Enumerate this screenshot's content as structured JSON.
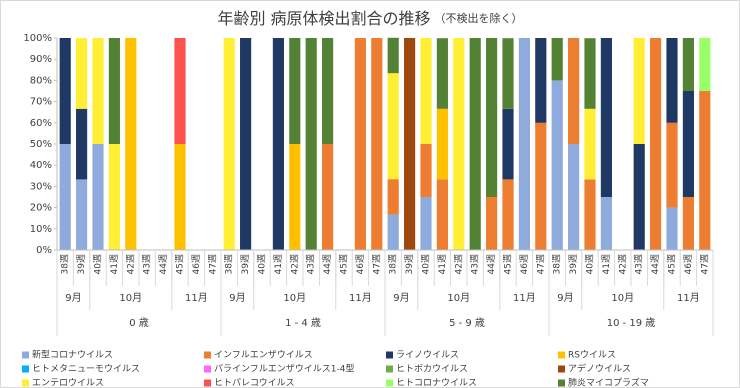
{
  "chart_data": {
    "type": "stacked_bar",
    "title": "年齢別 病原体検出割合の推移",
    "subtitle": "（不検出を除く）",
    "ylim": [
      0,
      100
    ],
    "yticks": [
      {
        "value": 0,
        "label": "0%"
      },
      {
        "value": 10,
        "label": "10%"
      },
      {
        "value": 20,
        "label": "20%"
      },
      {
        "value": 30,
        "label": "30%"
      },
      {
        "value": 40,
        "label": "40%"
      },
      {
        "value": 50,
        "label": "50%"
      },
      {
        "value": 60,
        "label": "60%"
      },
      {
        "value": 70,
        "label": "70%"
      },
      {
        "value": 80,
        "label": "80%"
      },
      {
        "value": 90,
        "label": "90%"
      },
      {
        "value": 100,
        "label": "100%"
      }
    ],
    "grid": false,
    "legend": "bottom",
    "groups": [
      {
        "label": "0 歳",
        "months": [
          {
            "label": "9月",
            "weeks": [
              "38週",
              "39週"
            ]
          },
          {
            "label": "10月",
            "weeks": [
              "40週",
              "41週",
              "42週",
              "43週",
              "44週"
            ]
          },
          {
            "label": "11月",
            "weeks": [
              "45週",
              "46週",
              "47週"
            ]
          }
        ]
      },
      {
        "label": "1 - 4 歳",
        "months": [
          {
            "label": "9月",
            "weeks": [
              "38週",
              "39週"
            ]
          },
          {
            "label": "10月",
            "weeks": [
              "40週",
              "41週",
              "42週",
              "43週",
              "44週"
            ]
          },
          {
            "label": "11月",
            "weeks": [
              "45週",
              "46週",
              "47週"
            ]
          }
        ]
      },
      {
        "label": "5 - 9 歳",
        "months": [
          {
            "label": "9月",
            "weeks": [
              "38週",
              "39週"
            ]
          },
          {
            "label": "10月",
            "weeks": [
              "40週",
              "41週",
              "42週",
              "43週",
              "44週"
            ]
          },
          {
            "label": "11月",
            "weeks": [
              "45週",
              "46週",
              "47週"
            ]
          }
        ]
      },
      {
        "label": "10 - 19 歳",
        "months": [
          {
            "label": "9月",
            "weeks": [
              "38週",
              "39週"
            ]
          },
          {
            "label": "10月",
            "weeks": [
              "40週",
              "41週",
              "42週",
              "43週",
              "44週"
            ]
          },
          {
            "label": "11月",
            "weeks": [
              "45週",
              "46週",
              "47週"
            ]
          }
        ]
      }
    ],
    "series": [
      {
        "name": "新型コロナウイルス",
        "color": "#8faadc",
        "values": [
          50,
          33.3,
          50,
          0,
          0,
          0,
          0,
          0,
          0,
          0,
          0,
          0,
          0,
          0,
          0,
          0,
          0,
          0,
          0,
          0,
          16.7,
          0,
          25,
          0,
          0,
          0,
          0,
          0,
          100,
          0,
          80,
          50,
          0,
          25,
          0,
          0,
          0,
          20,
          0,
          0
        ]
      },
      {
        "name": "インフルエンザウイルス",
        "color": "#ed7d31",
        "values": [
          0,
          0,
          0,
          0,
          0,
          0,
          0,
          0,
          0,
          0,
          0,
          0,
          0,
          0,
          0,
          0,
          50,
          0,
          100,
          100,
          16.7,
          0,
          25,
          33.3,
          0,
          0,
          25,
          33.3,
          0,
          60,
          0,
          50,
          33.3,
          0,
          0,
          0,
          100,
          40,
          25,
          75
        ]
      },
      {
        "name": "ライノウイルス",
        "color": "#203864",
        "values": [
          50,
          33.3,
          0,
          0,
          0,
          0,
          0,
          0,
          0,
          0,
          0,
          100,
          0,
          100,
          0,
          0,
          0,
          0,
          0,
          0,
          0,
          0,
          0,
          0,
          0,
          0,
          0,
          33.3,
          0,
          40,
          0,
          0,
          0,
          75,
          0,
          50,
          0,
          40,
          50,
          0
        ]
      },
      {
        "name": "RSウイルス",
        "color": "#ffc000",
        "values": [
          0,
          0,
          0,
          0,
          100,
          0,
          0,
          50,
          0,
          0,
          0,
          0,
          0,
          0,
          50,
          0,
          0,
          0,
          0,
          0,
          0,
          0,
          0,
          33.3,
          0,
          0,
          0,
          0,
          0,
          0,
          0,
          0,
          0,
          0,
          0,
          0,
          0,
          0,
          0,
          0
        ]
      },
      {
        "name": "ヒトメタニューモウイルス",
        "color": "#00b0f0",
        "values": [
          0,
          0,
          0,
          0,
          0,
          0,
          0,
          0,
          0,
          0,
          0,
          0,
          0,
          0,
          0,
          0,
          0,
          0,
          0,
          0,
          0,
          0,
          0,
          0,
          0,
          0,
          0,
          0,
          0,
          0,
          0,
          0,
          0,
          0,
          0,
          0,
          0,
          0,
          0,
          0
        ]
      },
      {
        "name": "パラインフルエンザウイルス1-4型",
        "color": "#ff66ff",
        "values": [
          0,
          0,
          0,
          0,
          0,
          0,
          0,
          0,
          0,
          0,
          0,
          0,
          0,
          0,
          0,
          0,
          0,
          0,
          0,
          0,
          0,
          0,
          0,
          0,
          0,
          0,
          0,
          0,
          0,
          0,
          0,
          0,
          0,
          0,
          0,
          0,
          0,
          0,
          0,
          0
        ]
      },
      {
        "name": "ヒトボカウイルス",
        "color": "#70ad47",
        "values": [
          0,
          0,
          0,
          0,
          0,
          0,
          0,
          0,
          0,
          0,
          0,
          0,
          0,
          0,
          0,
          0,
          0,
          0,
          0,
          0,
          0,
          0,
          0,
          0,
          0,
          0,
          0,
          0,
          0,
          0,
          0,
          0,
          0,
          0,
          0,
          0,
          0,
          0,
          0,
          0
        ]
      },
      {
        "name": "アデノウイルス",
        "color": "#9e480e",
        "values": [
          0,
          0,
          0,
          0,
          0,
          0,
          0,
          0,
          0,
          0,
          0,
          0,
          0,
          0,
          0,
          0,
          0,
          0,
          0,
          0,
          0,
          100,
          0,
          0,
          0,
          0,
          0,
          0,
          0,
          0,
          0,
          0,
          0,
          0,
          0,
          0,
          0,
          0,
          0,
          0
        ]
      },
      {
        "name": "エンテロウイルス",
        "color": "#ffee33",
        "values": [
          0,
          33.3,
          50,
          50,
          0,
          0,
          0,
          0,
          0,
          0,
          100,
          0,
          0,
          0,
          0,
          0,
          0,
          0,
          0,
          0,
          50,
          0,
          50,
          0,
          100,
          0,
          0,
          0,
          0,
          0,
          0,
          0,
          33.3,
          0,
          0,
          50,
          0,
          0,
          0,
          0
        ]
      },
      {
        "name": "ヒトパレコウイルス",
        "color": "#ff5050",
        "values": [
          0,
          0,
          0,
          0,
          0,
          0,
          0,
          50,
          0,
          0,
          0,
          0,
          0,
          0,
          0,
          0,
          0,
          0,
          0,
          0,
          0,
          0,
          0,
          0,
          0,
          0,
          0,
          0,
          0,
          0,
          0,
          0,
          0,
          0,
          0,
          0,
          0,
          0,
          0,
          0
        ]
      },
      {
        "name": "ヒトコロナウイルス",
        "color": "#99ff66",
        "values": [
          0,
          0,
          0,
          0,
          0,
          0,
          0,
          0,
          0,
          0,
          0,
          0,
          0,
          0,
          0,
          0,
          0,
          0,
          0,
          0,
          0,
          0,
          0,
          0,
          0,
          0,
          0,
          0,
          0,
          0,
          0,
          0,
          0,
          0,
          0,
          0,
          0,
          0,
          0,
          25
        ]
      },
      {
        "name": "肺炎マイコプラズマ",
        "color": "#548235",
        "values": [
          0,
          0,
          0,
          50,
          0,
          0,
          0,
          0,
          0,
          0,
          0,
          0,
          0,
          0,
          50,
          100,
          50,
          0,
          0,
          0,
          16.7,
          0,
          0,
          33.3,
          0,
          100,
          75,
          33.3,
          0,
          0,
          20,
          0,
          33.3,
          0,
          0,
          0,
          0,
          0,
          25,
          0
        ]
      }
    ]
  }
}
